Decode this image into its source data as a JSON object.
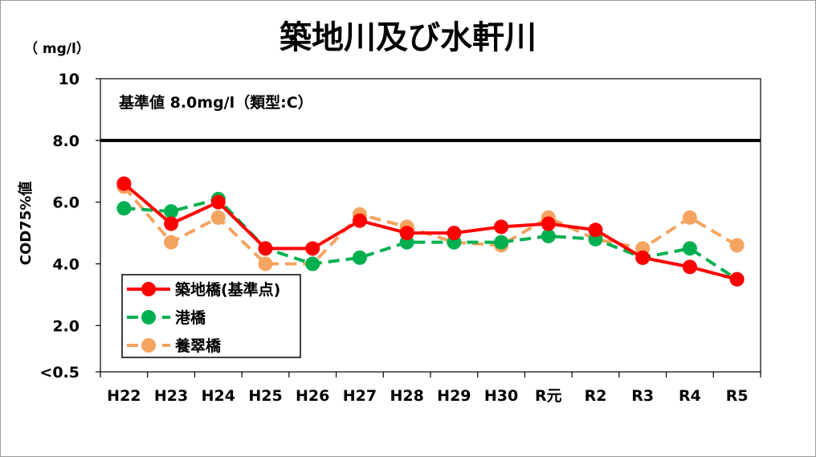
{
  "chart_data": {
    "type": "line",
    "title": "築地川及び水軒川",
    "unit_label": "（ mg/l）",
    "ylabel": "COD75%値",
    "categories": [
      "H22",
      "H23",
      "H24",
      "H25",
      "H26",
      "H27",
      "H28",
      "H29",
      "H30",
      "R元",
      "R2",
      "R3",
      "R4",
      "R5"
    ],
    "ylim": [
      0.5,
      10
    ],
    "yticks": [
      {
        "value": 10,
        "label": "10"
      },
      {
        "value": 8,
        "label": "8.0"
      },
      {
        "value": 6,
        "label": "6.0"
      },
      {
        "value": 4,
        "label": "4.0"
      },
      {
        "value": 2,
        "label": "2.0"
      },
      {
        "value": 0.5,
        "label": "<0.5"
      }
    ],
    "standard": {
      "value": 8.0,
      "label": "基準値 8.0mg/l（類型:C）",
      "color": "#000000"
    },
    "series": [
      {
        "name": "築地橋(基準点)",
        "color": "#ff0000",
        "dash": "solid",
        "values": [
          6.6,
          5.3,
          6.0,
          4.5,
          4.5,
          5.4,
          5.0,
          5.0,
          5.2,
          5.3,
          5.1,
          4.2,
          3.9,
          3.5
        ]
      },
      {
        "name": "港橋",
        "color": "#00b050",
        "dash": "dashed",
        "values": [
          5.8,
          5.7,
          6.1,
          4.5,
          4.0,
          4.2,
          4.7,
          4.7,
          4.7,
          4.9,
          4.8,
          4.2,
          4.5,
          3.5
        ]
      },
      {
        "name": "養翠橋",
        "color": "#f4a460",
        "dash": "dashed",
        "values": [
          6.5,
          4.7,
          5.5,
          4.0,
          4.0,
          5.6,
          5.2,
          4.7,
          4.6,
          5.5,
          4.8,
          4.5,
          5.5,
          4.6
        ]
      }
    ],
    "grid": false,
    "legend_position": "bottom-left"
  }
}
